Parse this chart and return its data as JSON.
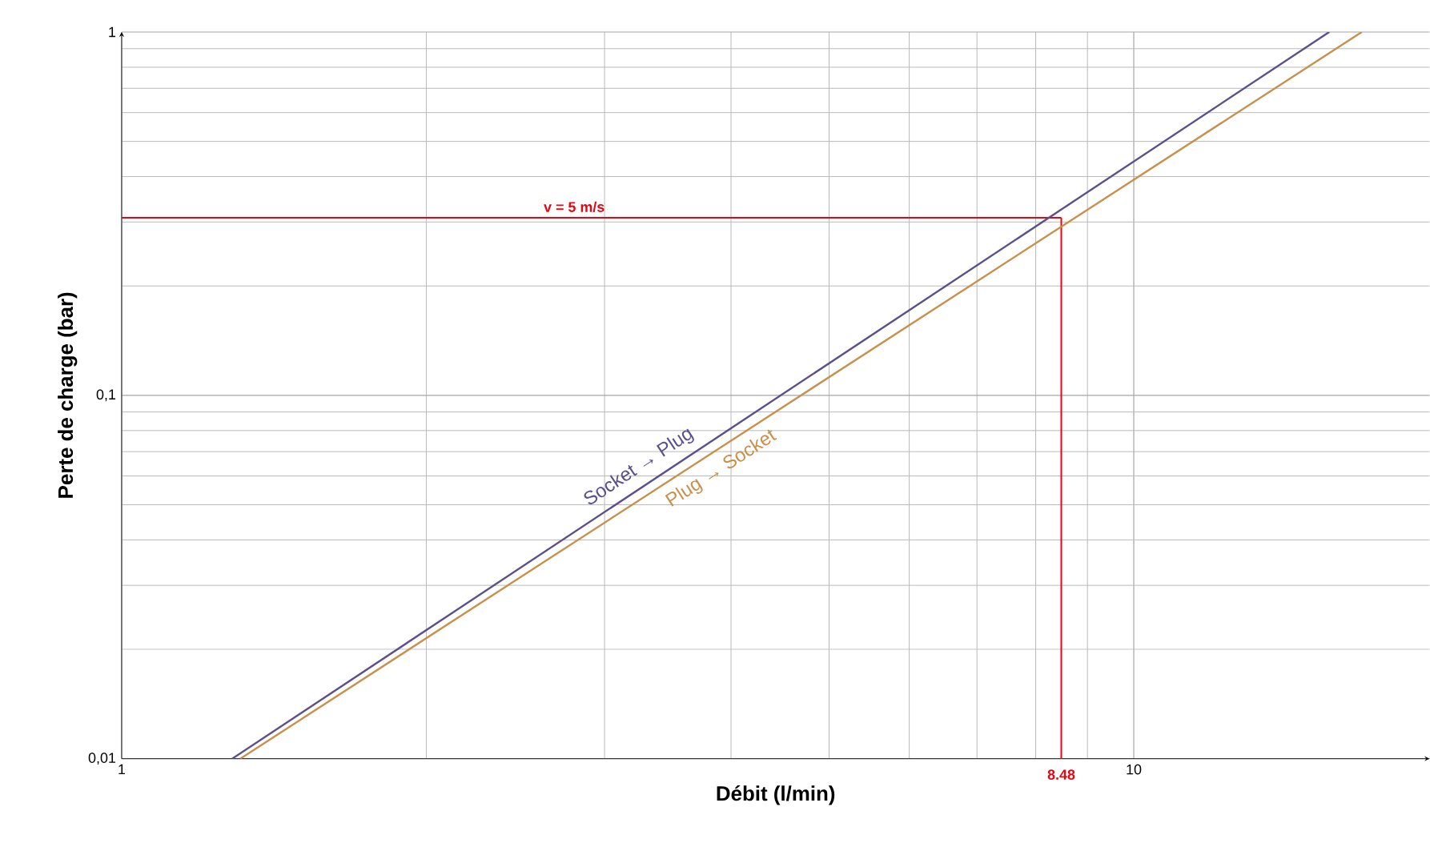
{
  "chart_data": {
    "type": "line",
    "xlabel": "Débit (l/min)",
    "ylabel": "Perte de charge (bar)",
    "series": [
      {
        "name": "Socket → Plug",
        "color": "#5b4f8c",
        "x": [
          1.286,
          15.6
        ],
        "values": [
          0.01,
          1
        ]
      },
      {
        "name": "Plug → Socket",
        "color": "#c8904a",
        "x": [
          1.31,
          16.8
        ],
        "values": [
          0.01,
          1
        ]
      }
    ],
    "xlim": [
      1,
      19.6
    ],
    "ylim": [
      0.01,
      1
    ],
    "xticks": [
      1,
      10
    ],
    "yticks": [
      {
        "value": 0.01,
        "label": "0,01"
      },
      {
        "value": 0.1,
        "label": "0,1"
      },
      {
        "value": 1,
        "label": "1"
      }
    ],
    "annotations": [
      {
        "text": "v = 5 m/s",
        "x": 2.8,
        "y": 0.308
      }
    ],
    "log": "xy",
    "grid": true,
    "ref_lines": [
      {
        "axis": "y",
        "value": 0.308,
        "color": "#e30613"
      },
      {
        "axis": "x",
        "value": 8.48,
        "label": "8.48",
        "color": "#e30613"
      }
    ]
  }
}
